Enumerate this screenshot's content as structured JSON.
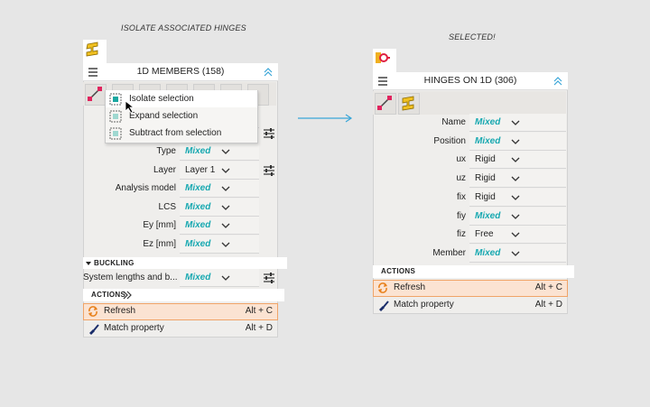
{
  "captions": {
    "left": "ISOLATE ASSOCIATED HINGES",
    "right": "SELECTED!"
  },
  "left_panel": {
    "title": "1D MEMBERS (158)",
    "menu": [
      "Isolate selection",
      "Expand selection",
      "Subtract from selection"
    ],
    "properties": [
      {
        "label": "Type",
        "value": "Mixed",
        "color": "#19a9b1",
        "italic": true,
        "filter": false
      },
      {
        "label": "Layer",
        "value": "Layer 1",
        "color": "#222222",
        "italic": false,
        "filter": true
      },
      {
        "label": "Analysis model",
        "value": "Mixed",
        "color": "#19a9b1",
        "italic": true,
        "filter": false
      },
      {
        "label": "LCS",
        "value": "Mixed",
        "color": "#19a9b1",
        "italic": true,
        "filter": false
      },
      {
        "label": "Ey [mm]",
        "value": "Mixed",
        "color": "#19a9b1",
        "italic": true,
        "filter": false
      },
      {
        "label": "Ez [mm]",
        "value": "Mixed",
        "color": "#19a9b1",
        "italic": true,
        "filter": false
      }
    ],
    "buckling": {
      "title": "BUCKLING",
      "properties": [
        {
          "label": "System lengths and b...",
          "value": "Mixed",
          "color": "#19a9b1",
          "italic": true,
          "filter": true
        }
      ]
    },
    "actions": {
      "title": "ACTIONS",
      "items": [
        {
          "label": "Refresh",
          "shortcut": "Alt + C"
        },
        {
          "label": "Match property",
          "shortcut": "Alt + D"
        }
      ]
    }
  },
  "right_panel": {
    "title": "HINGES ON 1D (306)",
    "properties": [
      {
        "label": "Name",
        "value": "Mixed",
        "color": "#19a9b1",
        "italic": true,
        "filter": false
      },
      {
        "label": "Position",
        "value": "Mixed",
        "color": "#19a9b1",
        "italic": true,
        "filter": false
      },
      {
        "label": "ux",
        "value": "Rigid",
        "color": "#222222",
        "italic": false,
        "filter": false
      },
      {
        "label": "uz",
        "value": "Rigid",
        "color": "#222222",
        "italic": false,
        "filter": false
      },
      {
        "label": "fix",
        "value": "Rigid",
        "color": "#222222",
        "italic": false,
        "filter": false
      },
      {
        "label": "fiy",
        "value": "Mixed",
        "color": "#19a9b1",
        "italic": true,
        "filter": false
      },
      {
        "label": "fiz",
        "value": "Free",
        "color": "#222222",
        "italic": false,
        "filter": false
      },
      {
        "label": "Member",
        "value": "Mixed",
        "color": "#19a9b1",
        "italic": true,
        "filter": false
      }
    ],
    "actions": {
      "title": "ACTIONS",
      "items": [
        {
          "label": "Refresh",
          "shortcut": "Alt + C"
        },
        {
          "label": "Match property",
          "shortcut": "Alt + D"
        }
      ]
    }
  }
}
